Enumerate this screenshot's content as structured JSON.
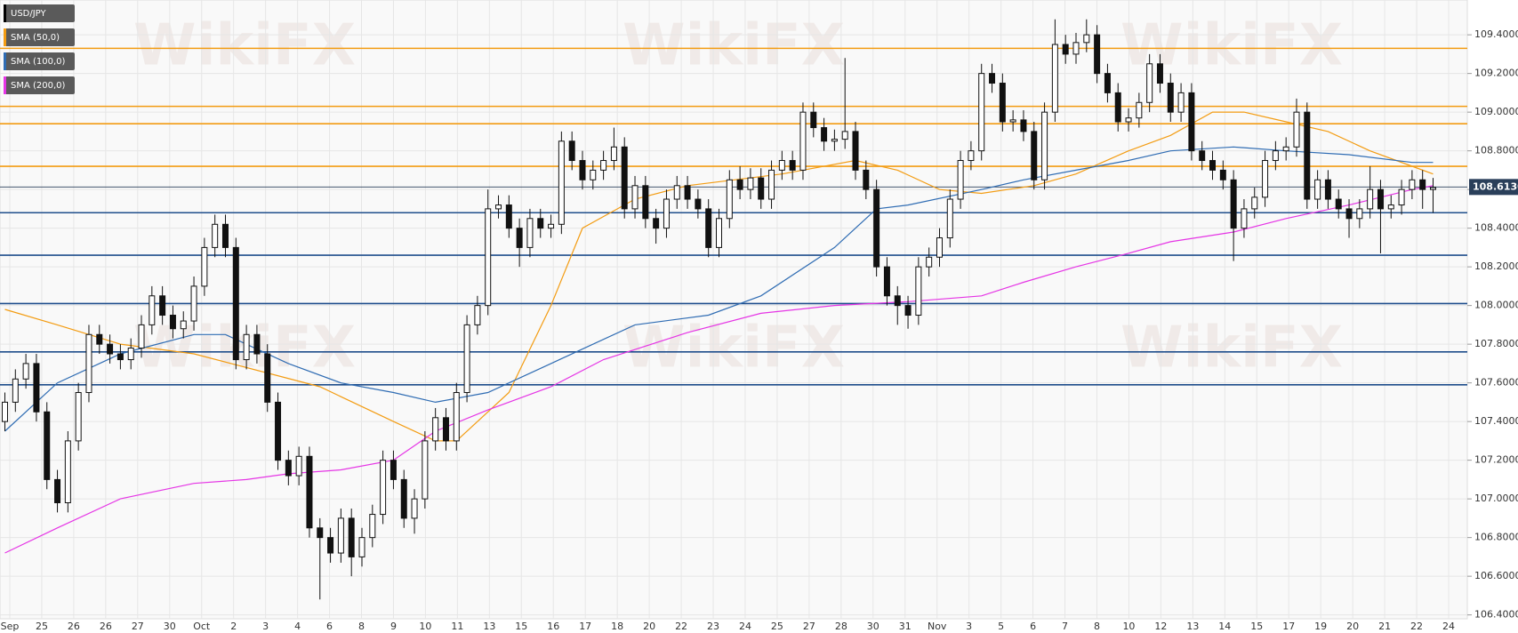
{
  "chart_data": {
    "type": "candlestick",
    "watermark": "WikiFX",
    "ylim": [
      106.38,
      109.58
    ],
    "yticks": [
      {
        "value": 106.4,
        "label": "106.4000"
      },
      {
        "value": 106.6,
        "label": "106.6000"
      },
      {
        "value": 106.8,
        "label": "106.8000"
      },
      {
        "value": 107.0,
        "label": "107.0000"
      },
      {
        "value": 107.2,
        "label": "107.2000"
      },
      {
        "value": 107.4,
        "label": "107.4000"
      },
      {
        "value": 107.6,
        "label": "107.6000"
      },
      {
        "value": 107.8,
        "label": "107.8000"
      },
      {
        "value": 108.0,
        "label": "108.0000"
      },
      {
        "value": 108.2,
        "label": "108.2000"
      },
      {
        "value": 108.4,
        "label": "108.4000"
      },
      {
        "value": 108.6,
        "label": "108.6000"
      },
      {
        "value": 108.8,
        "label": "108.8000"
      },
      {
        "value": 109.0,
        "label": "109.0000"
      },
      {
        "value": 109.2,
        "label": "109.2000"
      },
      {
        "value": 109.4,
        "label": "109.4000"
      }
    ],
    "grid": true,
    "x_tick_labels": [
      "Sep",
      "25",
      "26",
      "26",
      "27",
      "30",
      "Oct",
      "2",
      "3",
      "4",
      "6",
      "8",
      "9",
      "10",
      "11",
      "13",
      "15",
      "16",
      "17",
      "18",
      "20",
      "22",
      "23",
      "24",
      "25",
      "27",
      "28",
      "30",
      "31",
      "Nov",
      "3",
      "5",
      "6",
      "7",
      "8",
      "10",
      "12",
      "13",
      "14",
      "15",
      "17",
      "19",
      "20",
      "21",
      "22",
      "24"
    ],
    "last_price": {
      "value": 108.613,
      "label": "108.6130"
    },
    "levels": [
      {
        "value": 109.33,
        "color": "#f39c12"
      },
      {
        "value": 109.03,
        "color": "#f39c12"
      },
      {
        "value": 108.94,
        "color": "#f39c12"
      },
      {
        "value": 108.72,
        "color": "#f39c12"
      },
      {
        "value": 108.48,
        "color": "#1f4e8c"
      },
      {
        "value": 108.26,
        "color": "#1f4e8c"
      },
      {
        "value": 108.01,
        "color": "#1f4e8c"
      },
      {
        "value": 107.76,
        "color": "#1f4e8c"
      },
      {
        "value": 107.59,
        "color": "#1f4e8c"
      }
    ],
    "candles": {
      "name": "USD/JPY",
      "color": "#111111",
      "open": [
        107.4,
        107.5,
        107.62,
        107.7,
        107.45,
        107.1,
        106.98,
        107.3,
        107.55,
        107.85,
        107.8,
        107.75,
        107.72,
        107.78,
        107.9,
        108.05,
        107.95,
        107.88,
        107.92,
        108.1,
        108.3,
        108.42,
        108.3,
        107.72,
        107.85,
        107.75,
        107.5,
        107.2,
        107.12,
        107.22,
        106.85,
        106.8,
        106.72,
        106.9,
        106.7,
        106.8,
        106.92,
        107.2,
        107.1,
        106.9,
        107.0,
        107.3,
        107.42,
        107.3,
        107.55,
        107.9,
        108.0,
        108.5,
        108.52,
        108.4,
        108.3,
        108.45,
        108.4,
        108.42,
        108.85,
        108.75,
        108.65,
        108.7,
        108.75,
        108.82,
        108.5,
        108.62,
        108.45,
        108.4,
        108.55,
        108.62,
        108.55,
        108.5,
        108.3,
        108.45,
        108.65,
        108.6,
        108.66,
        108.55,
        108.7,
        108.75,
        108.7,
        109.0,
        108.92,
        108.85,
        108.86,
        108.9,
        108.7,
        108.6,
        108.2,
        108.05,
        108.0,
        107.95,
        108.2,
        108.25,
        108.35,
        108.55,
        108.75,
        108.8,
        109.2,
        109.15,
        108.95,
        108.96,
        108.9,
        108.65,
        109.0,
        109.35,
        109.3,
        109.36,
        109.4,
        109.2,
        109.1,
        108.95,
        108.97,
        109.05,
        109.25,
        109.15,
        109.0,
        109.1,
        108.8,
        108.75,
        108.7,
        108.65,
        108.4,
        108.5,
        108.56,
        108.75,
        108.8,
        108.82,
        109.0,
        108.55,
        108.65,
        108.55,
        108.5,
        108.45,
        108.5,
        108.6,
        108.5,
        108.52,
        108.6,
        108.65,
        108.6
      ],
      "high": [
        107.55,
        107.67,
        107.75,
        107.75,
        107.5,
        107.15,
        107.35,
        107.6,
        107.9,
        107.9,
        107.85,
        107.8,
        107.83,
        107.95,
        108.1,
        108.1,
        108.0,
        107.97,
        108.15,
        108.35,
        108.47,
        108.47,
        108.35,
        107.9,
        107.9,
        107.8,
        107.55,
        107.25,
        107.27,
        107.27,
        106.9,
        106.85,
        106.95,
        106.95,
        106.85,
        106.97,
        107.25,
        107.25,
        107.15,
        107.05,
        107.35,
        107.47,
        107.47,
        107.6,
        107.95,
        108.05,
        108.6,
        108.57,
        108.57,
        108.45,
        108.5,
        108.5,
        108.47,
        108.9,
        108.9,
        108.8,
        108.75,
        108.8,
        108.92,
        108.87,
        108.67,
        108.67,
        108.5,
        108.6,
        108.67,
        108.67,
        108.6,
        108.55,
        108.5,
        108.7,
        108.72,
        108.71,
        108.71,
        108.75,
        108.8,
        108.8,
        109.05,
        109.05,
        108.97,
        108.91,
        109.28,
        108.95,
        108.75,
        108.65,
        108.25,
        108.1,
        108.05,
        108.25,
        108.3,
        108.4,
        108.6,
        108.8,
        108.85,
        109.25,
        109.25,
        109.2,
        109.01,
        109.01,
        108.95,
        109.05,
        109.48,
        109.4,
        109.41,
        109.48,
        109.45,
        109.25,
        109.15,
        109.02,
        109.1,
        109.3,
        109.3,
        109.2,
        109.15,
        109.15,
        108.85,
        108.8,
        108.75,
        108.7,
        108.55,
        108.61,
        108.8,
        108.85,
        108.87,
        109.07,
        109.05,
        108.7,
        108.7,
        108.6,
        108.55,
        108.55,
        108.72,
        108.65,
        108.57,
        108.65,
        108.7,
        108.7,
        108.66
      ],
      "low": [
        107.35,
        107.45,
        107.57,
        107.4,
        107.05,
        106.93,
        106.93,
        107.25,
        107.5,
        107.75,
        107.7,
        107.67,
        107.67,
        107.73,
        107.85,
        107.9,
        107.83,
        107.83,
        107.87,
        108.05,
        108.25,
        108.25,
        107.67,
        107.67,
        107.7,
        107.45,
        107.15,
        107.07,
        107.07,
        106.8,
        106.48,
        106.67,
        106.67,
        106.6,
        106.65,
        106.75,
        106.87,
        107.05,
        106.85,
        106.82,
        106.95,
        107.25,
        107.25,
        107.25,
        107.5,
        107.85,
        107.95,
        108.45,
        108.35,
        108.2,
        108.25,
        108.35,
        108.35,
        108.37,
        108.7,
        108.6,
        108.6,
        108.65,
        108.7,
        108.45,
        108.45,
        108.4,
        108.32,
        108.35,
        108.5,
        108.5,
        108.45,
        108.25,
        108.25,
        108.4,
        108.55,
        108.55,
        108.5,
        108.5,
        108.65,
        108.65,
        108.65,
        108.87,
        108.8,
        108.8,
        108.81,
        108.65,
        108.55,
        108.15,
        108.0,
        107.9,
        107.88,
        107.9,
        108.15,
        108.2,
        108.3,
        108.5,
        108.7,
        108.75,
        109.1,
        108.9,
        108.9,
        108.85,
        108.6,
        108.6,
        108.95,
        109.25,
        109.25,
        109.31,
        109.15,
        109.05,
        108.9,
        108.9,
        108.92,
        109.0,
        109.1,
        108.95,
        108.95,
        108.75,
        108.7,
        108.65,
        108.6,
        108.23,
        108.35,
        108.45,
        108.51,
        108.7,
        108.75,
        108.77,
        108.5,
        108.5,
        108.5,
        108.45,
        108.35,
        108.4,
        108.45,
        108.27,
        108.45,
        108.47,
        108.55,
        108.5,
        108.48
      ],
      "close": [
        107.5,
        107.62,
        107.7,
        107.45,
        107.1,
        106.98,
        107.3,
        107.55,
        107.85,
        107.8,
        107.75,
        107.72,
        107.78,
        107.9,
        108.05,
        107.95,
        107.88,
        107.92,
        108.1,
        108.3,
        108.42,
        108.3,
        107.72,
        107.85,
        107.75,
        107.5,
        107.2,
        107.12,
        107.22,
        106.85,
        106.8,
        106.72,
        106.9,
        106.7,
        106.8,
        106.92,
        107.2,
        107.1,
        106.9,
        107.0,
        107.3,
        107.42,
        107.3,
        107.55,
        107.9,
        108.0,
        108.5,
        108.52,
        108.4,
        108.3,
        108.45,
        108.4,
        108.42,
        108.85,
        108.75,
        108.65,
        108.7,
        108.75,
        108.82,
        108.5,
        108.62,
        108.45,
        108.4,
        108.55,
        108.62,
        108.55,
        108.5,
        108.3,
        108.45,
        108.65,
        108.6,
        108.66,
        108.55,
        108.7,
        108.75,
        108.7,
        109.0,
        108.92,
        108.85,
        108.86,
        108.9,
        108.7,
        108.6,
        108.2,
        108.05,
        108.0,
        107.95,
        108.2,
        108.25,
        108.35,
        108.55,
        108.75,
        108.8,
        109.2,
        109.15,
        108.95,
        108.96,
        108.9,
        108.65,
        109.0,
        109.35,
        109.3,
        109.36,
        109.4,
        109.2,
        109.1,
        108.95,
        108.97,
        109.05,
        109.25,
        109.15,
        109.0,
        109.1,
        108.8,
        108.75,
        108.7,
        108.65,
        108.4,
        108.5,
        108.56,
        108.75,
        108.8,
        108.82,
        109.0,
        108.55,
        108.65,
        108.55,
        108.5,
        108.45,
        108.5,
        108.6,
        108.5,
        108.52,
        108.6,
        108.65,
        108.6,
        108.61
      ]
    },
    "series": [
      {
        "name": "SMA (50,0)",
        "color": "#f39c12",
        "x": [
          0,
          5,
          11,
          18,
          30,
          37,
          41,
          43,
          48,
          52,
          55,
          60,
          65,
          74,
          81,
          85,
          89,
          93,
          98,
          102,
          107,
          111,
          115,
          118,
          122,
          126,
          130,
          134,
          136
        ],
        "values": [
          107.98,
          107.9,
          107.8,
          107.75,
          107.58,
          107.4,
          107.3,
          107.3,
          107.55,
          108.0,
          108.4,
          108.55,
          108.62,
          108.68,
          108.75,
          108.7,
          108.6,
          108.58,
          108.62,
          108.68,
          108.8,
          108.88,
          109.0,
          109.0,
          108.95,
          108.9,
          108.8,
          108.72,
          108.68
        ]
      },
      {
        "name": "SMA (100,0)",
        "color": "#2f6cb3",
        "x": [
          0,
          5,
          11,
          18,
          21,
          27,
          32,
          37,
          41,
          46,
          52,
          60,
          67,
          72,
          79,
          83,
          86,
          93,
          97,
          102,
          107,
          111,
          117,
          122,
          128,
          134,
          136
        ],
        "values": [
          107.35,
          107.6,
          107.75,
          107.85,
          107.85,
          107.7,
          107.6,
          107.55,
          107.5,
          107.55,
          107.7,
          107.9,
          107.95,
          108.05,
          108.3,
          108.5,
          108.52,
          108.6,
          108.65,
          108.7,
          108.75,
          108.8,
          108.82,
          108.8,
          108.78,
          108.74,
          108.74
        ]
      },
      {
        "name": "SMA (200,0)",
        "color": "#e535e5",
        "x": [
          0,
          5,
          11,
          18,
          23,
          27,
          32,
          37,
          41,
          46,
          52,
          57,
          65,
          72,
          79,
          86,
          93,
          97,
          102,
          107,
          111,
          117,
          122,
          128,
          134,
          136
        ],
        "values": [
          106.72,
          106.85,
          107.0,
          107.08,
          107.1,
          107.13,
          107.15,
          107.2,
          107.35,
          107.46,
          107.58,
          107.72,
          107.86,
          107.96,
          108.0,
          108.02,
          108.05,
          108.12,
          108.2,
          108.27,
          108.33,
          108.38,
          108.45,
          108.52,
          108.6,
          108.62
        ]
      }
    ]
  }
}
